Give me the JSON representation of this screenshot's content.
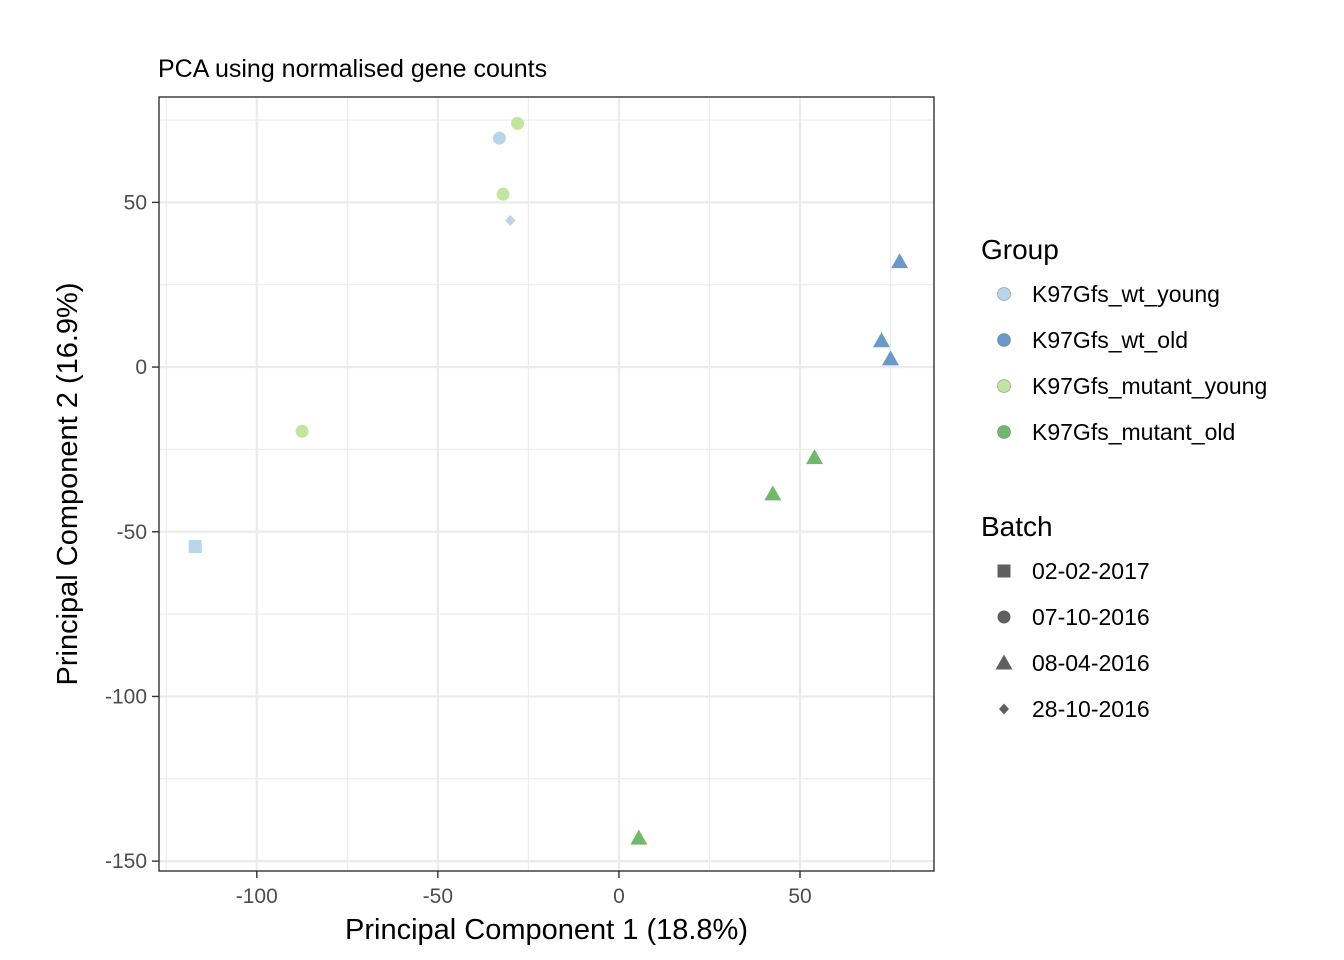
{
  "chart_data": {
    "type": "scatter",
    "title": "PCA using normalised gene counts",
    "xlabel": "Principal Component 1 (18.8%)",
    "ylabel": "Principal Component 2 (16.9%)",
    "xlim": [
      -127,
      87
    ],
    "ylim": [
      -153,
      82
    ],
    "x_ticks": [
      -100,
      -50,
      0,
      50
    ],
    "y_ticks": [
      -150,
      -100,
      -50,
      0,
      50
    ],
    "x_tick_labels": [
      "-100",
      "-50",
      "0",
      "50"
    ],
    "y_tick_labels": [
      "-150",
      "-100",
      "-50",
      "0",
      "50"
    ],
    "grid": true,
    "legend_position": "right",
    "groups": [
      {
        "name": "K97Gfs_wt_young",
        "color": "#b9d5ea"
      },
      {
        "name": "K97Gfs_wt_old",
        "color": "#6a98c8"
      },
      {
        "name": "K97Gfs_mutant_young",
        "color": "#c2e5a0"
      },
      {
        "name": "K97Gfs_mutant_old",
        "color": "#70b86a"
      }
    ],
    "batches": [
      {
        "name": "02-02-2017",
        "shape": "square"
      },
      {
        "name": "07-10-2016",
        "shape": "circle"
      },
      {
        "name": "08-04-2016",
        "shape": "triangle"
      },
      {
        "name": "28-10-2016",
        "shape": "diamond"
      }
    ],
    "group_legend_title": "Group",
    "batch_legend_title": "Batch",
    "points": [
      {
        "x": -33,
        "y": 69.5,
        "group": "K97Gfs_wt_young",
        "batch": "07-10-2016"
      },
      {
        "x": -28,
        "y": 74,
        "group": "K97Gfs_mutant_young",
        "batch": "07-10-2016"
      },
      {
        "x": -32,
        "y": 52.5,
        "group": "K97Gfs_mutant_young",
        "batch": "07-10-2016"
      },
      {
        "x": -30,
        "y": 44.5,
        "group": "K97Gfs_wt_young",
        "batch": "28-10-2016"
      },
      {
        "x": 77.5,
        "y": 32,
        "group": "K97Gfs_wt_old",
        "batch": "08-04-2016"
      },
      {
        "x": 72.5,
        "y": 8,
        "group": "K97Gfs_wt_old",
        "batch": "08-04-2016"
      },
      {
        "x": 75,
        "y": 2.5,
        "group": "K97Gfs_wt_old",
        "batch": "08-04-2016"
      },
      {
        "x": -87.5,
        "y": -19.5,
        "group": "K97Gfs_mutant_young",
        "batch": "07-10-2016"
      },
      {
        "x": 54,
        "y": -27.5,
        "group": "K97Gfs_mutant_old",
        "batch": "08-04-2016"
      },
      {
        "x": 42.5,
        "y": -38.5,
        "group": "K97Gfs_mutant_old",
        "batch": "08-04-2016"
      },
      {
        "x": -117,
        "y": -54.5,
        "group": "K97Gfs_wt_young",
        "batch": "02-02-2017"
      },
      {
        "x": 5.5,
        "y": -143,
        "group": "K97Gfs_mutant_old",
        "batch": "08-04-2016"
      }
    ]
  }
}
